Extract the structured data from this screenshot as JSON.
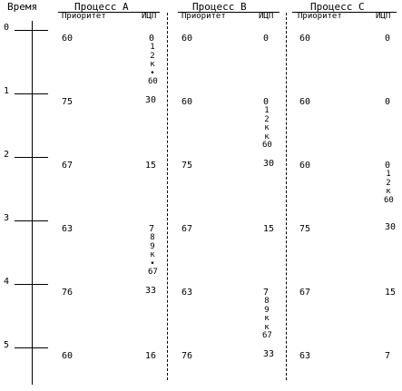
{
  "header": {
    "time_label": "Время",
    "processes": [
      {
        "name": "Процесс A",
        "col1": "Приоритет",
        "col2": "ИЦП"
      },
      {
        "name": "Процесс B",
        "col1": "Приоритет",
        "col2": "ИЦП"
      },
      {
        "name": "Процесс C",
        "col1": "Приоритет",
        "col2": "ИЦП"
      }
    ]
  },
  "time_ticks": [
    "0",
    "1",
    "2",
    "3",
    "4",
    "5"
  ],
  "rows": [
    {
      "a_pri": "60",
      "a_icp": "0",
      "b_pri": "60",
      "b_icp": "0",
      "c_pri": "60",
      "c_icp": "0"
    },
    {
      "a_pri": "75",
      "a_icp": "30",
      "b_pri": "60",
      "b_icp": "0",
      "c_pri": "60",
      "c_icp": "0"
    },
    {
      "a_pri": "67",
      "a_icp": "15",
      "b_pri": "75",
      "b_icp": "30",
      "c_pri": "60",
      "c_icp": "0"
    },
    {
      "a_pri": "63",
      "a_icp": "7",
      "b_pri": "67",
      "b_icp": "15",
      "c_pri": "75",
      "c_icp": "30"
    },
    {
      "a_pri": "76",
      "a_icp": "33",
      "b_pri": "63",
      "b_icp": "7",
      "c_pri": "67",
      "c_icp": "15"
    },
    {
      "a_pri": "60",
      "a_icp": "16",
      "b_pri": "76",
      "b_icp": "33",
      "c_pri": "63",
      "c_icp": "7"
    }
  ],
  "counters": [
    {
      "items": [
        "1",
        "2",
        "к",
        "•",
        "60"
      ]
    },
    {
      "items": [
        "1",
        "2",
        "к",
        "к",
        "60"
      ]
    },
    {
      "items": [
        "1",
        "2",
        "к",
        "60"
      ]
    },
    {
      "items": [
        "8",
        "9",
        "к",
        "•",
        "67"
      ]
    },
    {
      "items": [
        "8",
        "9",
        "к",
        "к",
        "67"
      ]
    }
  ]
}
